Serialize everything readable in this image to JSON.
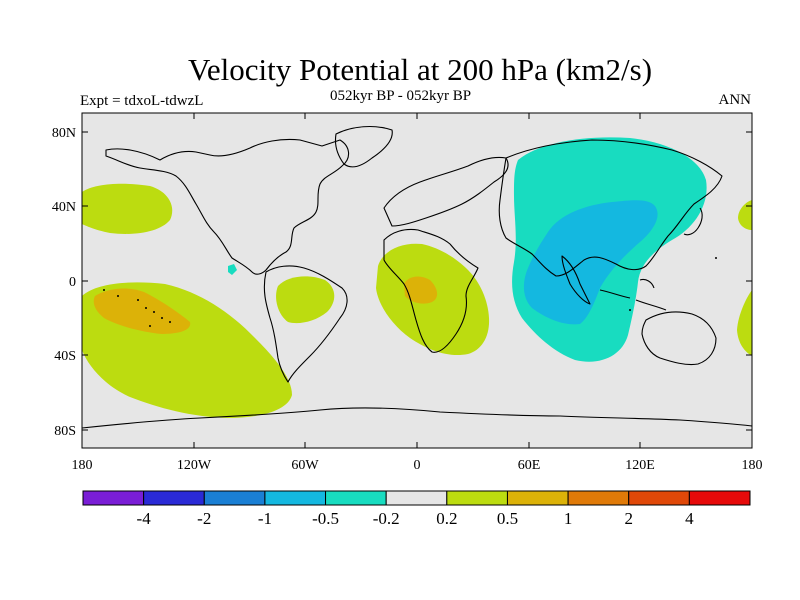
{
  "header": {
    "title": "Velocity Potential at 200 hPa (km2/s)",
    "left_string": "Expt = tdxoL-tdwzL",
    "center_string": "052kyr BP - 052kyr BP",
    "right_string": "ANN"
  },
  "axes": {
    "lat_labels": [
      "80N",
      "40N",
      "0",
      "40S",
      "80S"
    ],
    "lon_labels": [
      "180",
      "120W",
      "60W",
      "0",
      "60E",
      "120E",
      "180"
    ]
  },
  "colorbar": {
    "colors": [
      "#7a1ed6",
      "#2a2ad6",
      "#1a7fd4",
      "#14b8e0",
      "#18dcc0",
      "#e6e6e6",
      "#bcdc10",
      "#dcb208",
      "#e07a08",
      "#e04808",
      "#e60a0a"
    ],
    "labels": [
      "-4",
      "-2",
      "-1",
      "-0.5",
      "-0.2",
      "0.2",
      "0.5",
      "1",
      "2",
      "4"
    ]
  },
  "map": {
    "background": "#e6e6e6",
    "projection": "cylindrical-equidistant",
    "lon_range": [
      -180,
      180
    ],
    "lat_range": [
      -90,
      90
    ]
  }
}
